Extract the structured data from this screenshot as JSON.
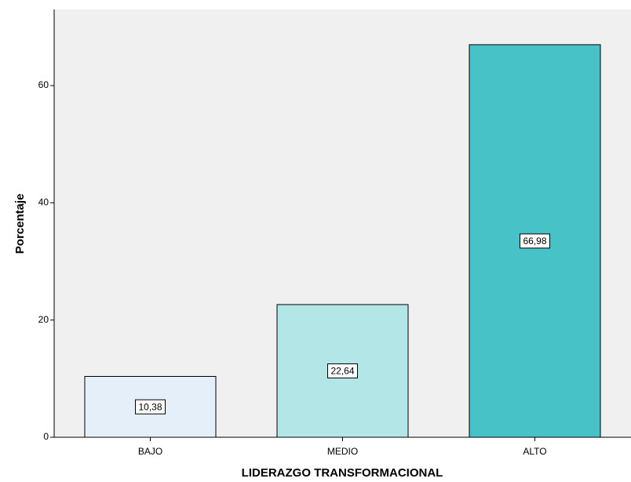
{
  "chart_data": {
    "type": "bar",
    "title": "",
    "xlabel": "LIDERAZGO TRANSFORMACIONAL",
    "ylabel": "Porcentaje",
    "categories": [
      "BAJO",
      "MEDIO",
      "ALTO"
    ],
    "values": [
      10.38,
      22.64,
      66.98
    ],
    "data_labels": [
      "10,38",
      "22,64",
      "66,98"
    ],
    "bar_colors": [
      "#e5effa",
      "#b3e6e6",
      "#47c2c7"
    ],
    "plot_background": "#f0f0f0",
    "ylim": [
      0,
      73
    ],
    "yticks": [
      0,
      20,
      40,
      60
    ],
    "ytick_labels": [
      "0",
      "20",
      "40",
      "60"
    ],
    "grid": false,
    "legend": "none"
  }
}
